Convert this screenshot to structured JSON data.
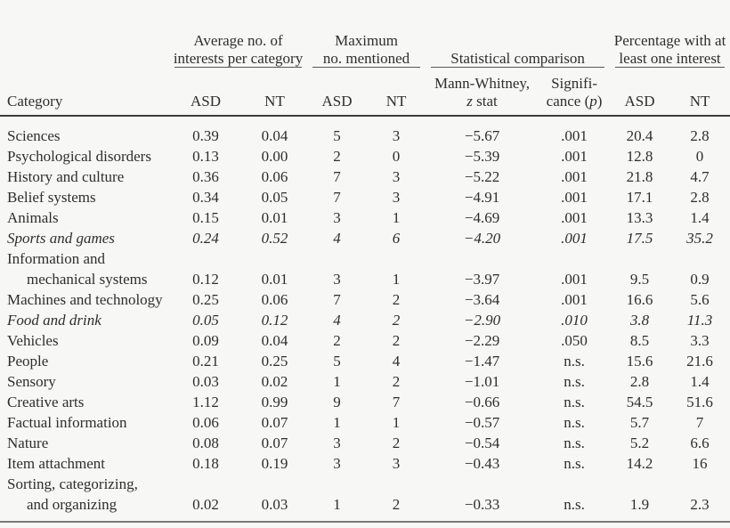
{
  "table": {
    "groups": {
      "avg": {
        "line1": "Average no. of",
        "line2": "interests per category"
      },
      "max": {
        "line1": "Maximum",
        "line2": "no. mentioned"
      },
      "stat": {
        "label": "Statistical comparison"
      },
      "pct": {
        "line1": "Percentage with at",
        "line2": "least one interest"
      }
    },
    "columns": {
      "category": "Category",
      "avg_asd": "ASD",
      "avg_nt": "NT",
      "max_asd": "ASD",
      "max_nt": "NT",
      "z_line1": "Mann-Whitney,",
      "z_it": "z",
      "z_rest": " stat",
      "sig_line1": "Signifi-",
      "sig_pre": "cance (",
      "sig_it": "p",
      "sig_post": ")",
      "pct_asd": "ASD",
      "pct_nt": "NT"
    },
    "rows": [
      {
        "category": "Sciences",
        "italic": false,
        "avg_asd": "0.39",
        "avg_nt": "0.04",
        "max_asd": "5",
        "max_nt": "3",
        "z": "−5.67",
        "p": ".001",
        "pct_asd": "20.4",
        "pct_nt": "2.8"
      },
      {
        "category": "Psychological disorders",
        "italic": false,
        "avg_asd": "0.13",
        "avg_nt": "0.00",
        "max_asd": "2",
        "max_nt": "0",
        "z": "−5.39",
        "p": ".001",
        "pct_asd": "12.8",
        "pct_nt": "0"
      },
      {
        "category": "History and culture",
        "italic": false,
        "avg_asd": "0.36",
        "avg_nt": "0.06",
        "max_asd": "7",
        "max_nt": "3",
        "z": "−5.22",
        "p": ".001",
        "pct_asd": "21.8",
        "pct_nt": "4.7"
      },
      {
        "category": "Belief systems",
        "italic": false,
        "avg_asd": "0.34",
        "avg_nt": "0.05",
        "max_asd": "7",
        "max_nt": "3",
        "z": "−4.91",
        "p": ".001",
        "pct_asd": "17.1",
        "pct_nt": "2.8"
      },
      {
        "category": "Animals",
        "italic": false,
        "avg_asd": "0.15",
        "avg_nt": "0.01",
        "max_asd": "3",
        "max_nt": "1",
        "z": "−4.69",
        "p": ".001",
        "pct_asd": "13.3",
        "pct_nt": "1.4"
      },
      {
        "category": "Sports and games",
        "italic": true,
        "avg_asd": "0.24",
        "avg_nt": "0.52",
        "max_asd": "4",
        "max_nt": "6",
        "z": "−4.20",
        "p": ".001",
        "pct_asd": "17.5",
        "pct_nt": "35.2"
      },
      {
        "category": "Information and",
        "category_line2": "mechanical systems",
        "italic": false,
        "avg_asd": "0.12",
        "avg_nt": "0.01",
        "max_asd": "3",
        "max_nt": "1",
        "z": "−3.97",
        "p": ".001",
        "pct_asd": "9.5",
        "pct_nt": "0.9"
      },
      {
        "category": "Machines and technology",
        "italic": false,
        "avg_asd": "0.25",
        "avg_nt": "0.06",
        "max_asd": "7",
        "max_nt": "2",
        "z": "−3.64",
        "p": ".001",
        "pct_asd": "16.6",
        "pct_nt": "5.6"
      },
      {
        "category": "Food and drink",
        "italic": true,
        "avg_asd": "0.05",
        "avg_nt": "0.12",
        "max_asd": "4",
        "max_nt": "2",
        "z": "−2.90",
        "p": ".010",
        "pct_asd": "3.8",
        "pct_nt": "11.3"
      },
      {
        "category": "Vehicles",
        "italic": false,
        "avg_asd": "0.09",
        "avg_nt": "0.04",
        "max_asd": "2",
        "max_nt": "2",
        "z": "−2.29",
        "p": ".050",
        "pct_asd": "8.5",
        "pct_nt": "3.3"
      },
      {
        "category": "People",
        "italic": false,
        "avg_asd": "0.21",
        "avg_nt": "0.25",
        "max_asd": "5",
        "max_nt": "4",
        "z": "−1.47",
        "p": "n.s.",
        "pct_asd": "15.6",
        "pct_nt": "21.6"
      },
      {
        "category": "Sensory",
        "italic": false,
        "avg_asd": "0.03",
        "avg_nt": "0.02",
        "max_asd": "1",
        "max_nt": "2",
        "z": "−1.01",
        "p": "n.s.",
        "pct_asd": "2.8",
        "pct_nt": "1.4"
      },
      {
        "category": "Creative arts",
        "italic": false,
        "avg_asd": "1.12",
        "avg_nt": "0.99",
        "max_asd": "9",
        "max_nt": "7",
        "z": "−0.66",
        "p": "n.s.",
        "pct_asd": "54.5",
        "pct_nt": "51.6"
      },
      {
        "category": "Factual information",
        "italic": false,
        "avg_asd": "0.06",
        "avg_nt": "0.07",
        "max_asd": "1",
        "max_nt": "1",
        "z": "−0.57",
        "p": "n.s.",
        "pct_asd": "5.7",
        "pct_nt": "7"
      },
      {
        "category": "Nature",
        "italic": false,
        "avg_asd": "0.08",
        "avg_nt": "0.07",
        "max_asd": "3",
        "max_nt": "2",
        "z": "−0.54",
        "p": "n.s.",
        "pct_asd": "5.2",
        "pct_nt": "6.6"
      },
      {
        "category": "Item attachment",
        "italic": false,
        "avg_asd": "0.18",
        "avg_nt": "0.19",
        "max_asd": "3",
        "max_nt": "3",
        "z": "−0.43",
        "p": "n.s.",
        "pct_asd": "14.2",
        "pct_nt": "16"
      },
      {
        "category": "Sorting, categorizing,",
        "category_line2": "and organizing",
        "italic": false,
        "avg_asd": "0.02",
        "avg_nt": "0.03",
        "max_asd": "1",
        "max_nt": "2",
        "z": "−0.33",
        "p": "n.s.",
        "pct_asd": "1.9",
        "pct_nt": "2.3"
      }
    ]
  }
}
